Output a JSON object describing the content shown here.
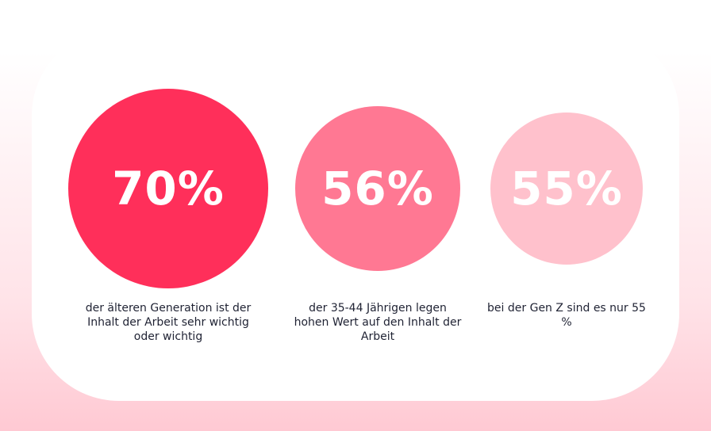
{
  "chart_data": {
    "type": "bubble-stats",
    "items": [
      {
        "value_label": "70%",
        "value": 70,
        "color": "#ff2f5a",
        "caption": "der älteren Generation ist der Inhalt der Arbeit sehr wichtig oder wichtig"
      },
      {
        "value_label": "56%",
        "value": 56,
        "color": "#ff7893",
        "caption": "der 35-44 Jährigen legen hohen Wert auf den Inhalt der Arbeit"
      },
      {
        "value_label": "55%",
        "value": 55,
        "color": "#ffc1cc",
        "caption": "bei der Gen Z sind es nur 55 %"
      }
    ]
  }
}
